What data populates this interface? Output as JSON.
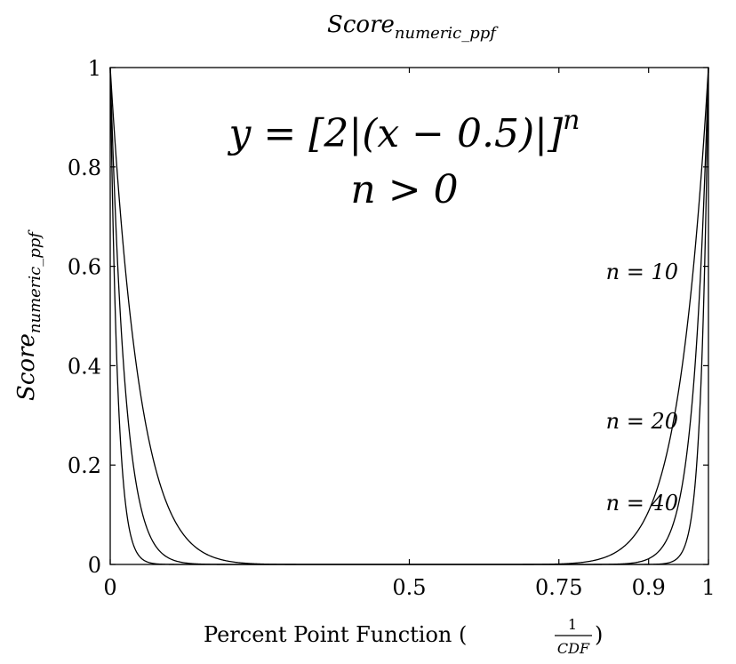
{
  "chart_data": {
    "type": "line",
    "title": {
      "base": "Score",
      "sub": "numeric_ppf"
    },
    "xlabel": {
      "text": "Percent Point Function (",
      "num": "1",
      "den": "CDF",
      "close": ")"
    },
    "ylabel": {
      "base": "Score",
      "sub": "numeric_ppf"
    },
    "xlim": [
      0,
      1
    ],
    "ylim": [
      0,
      1
    ],
    "x_ticks": [
      0,
      0.5,
      0.75,
      0.9,
      1
    ],
    "x_tick_labels": [
      "0",
      "0.5",
      "0.75",
      "0.9",
      "1"
    ],
    "y_ticks": [
      0,
      0.2,
      0.4,
      0.6,
      0.8,
      1
    ],
    "y_tick_labels": [
      "0",
      "0.2",
      "0.4",
      "0.6",
      "0.8",
      "1"
    ],
    "grid": false,
    "formula": {
      "line1": "y = [2|(x − 0.5)|]",
      "line1_exp": "n",
      "line2": "n > 0"
    },
    "series": [
      {
        "n": 10,
        "label": "n = 10",
        "label_y": 0.59
      },
      {
        "n": 20,
        "label": "n = 20",
        "label_y": 0.29
      },
      {
        "n": 40,
        "label": "n = 40",
        "label_y": 0.125
      }
    ],
    "line_color": "#000000"
  }
}
